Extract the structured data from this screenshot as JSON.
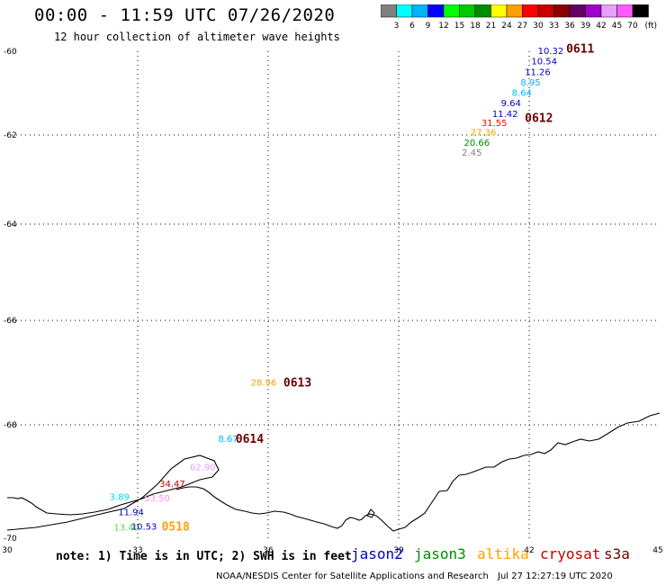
{
  "header": {
    "title": "00:00 - 11:59 UTC 07/26/2020",
    "subtitle": "12 hour collection of altimeter wave heights"
  },
  "legend": {
    "unit": "(ft)",
    "colors": [
      "#808080",
      "#00ffff",
      "#00b4ff",
      "#0000ff",
      "#00ff00",
      "#00c800",
      "#008c00",
      "#ffff00",
      "#ffa000",
      "#ff0000",
      "#c80000",
      "#8c0000",
      "#640064",
      "#a000c8",
      "#e6a0ff",
      "#ff5aff",
      "#000000"
    ],
    "labels": [
      "3",
      "6",
      "9",
      "12",
      "15",
      "18",
      "21",
      "24",
      "27",
      "30",
      "33",
      "36",
      "39",
      "42",
      "45",
      "70"
    ]
  },
  "axes": {
    "x_ticks": [
      "30",
      "33",
      "36",
      "39",
      "42",
      "45"
    ],
    "y_ticks": [
      "-60",
      "-62",
      "-64",
      "-66",
      "-68",
      "-70"
    ]
  },
  "observations": [
    {
      "label": "10.32",
      "lon": 42.2,
      "lat": -60.0,
      "color": "#0000c8"
    },
    {
      "label": "10.54",
      "lon": 42.05,
      "lat": -60.25,
      "color": "#0000c8"
    },
    {
      "label": "11.26",
      "lon": 41.9,
      "lat": -60.5,
      "color": "#0000c8"
    },
    {
      "label": "8.95",
      "lon": 41.8,
      "lat": -60.75,
      "color": "#00b4ff"
    },
    {
      "label": "8.64",
      "lon": 41.6,
      "lat": -61.0,
      "color": "#00b4ff"
    },
    {
      "label": "9.64",
      "lon": 41.35,
      "lat": -61.25,
      "color": "#0000c8"
    },
    {
      "label": "11.42",
      "lon": 41.15,
      "lat": -61.5,
      "color": "#0000c8"
    },
    {
      "label": "31.55",
      "lon": 40.9,
      "lat": -61.72,
      "color": "#ff0000"
    },
    {
      "label": "27.36",
      "lon": 40.65,
      "lat": -61.95,
      "color": "#ffa000"
    },
    {
      "label": "20.66",
      "lon": 40.5,
      "lat": -62.18,
      "color": "#008c00"
    },
    {
      "label": "2.45",
      "lon": 40.45,
      "lat": -62.4,
      "color": "#808080"
    },
    {
      "label": "28.96",
      "lon": 35.6,
      "lat": -67.2,
      "color": "#ffa000"
    },
    {
      "label": "8.67",
      "lon": 34.85,
      "lat": -68.25,
      "color": "#00b4ff"
    },
    {
      "label": "62.90",
      "lon": 34.2,
      "lat": -68.75,
      "color": "#e6a0ff"
    },
    {
      "label": "34.47",
      "lon": 33.5,
      "lat": -69.05,
      "color": "#c80000"
    },
    {
      "label": "3.89",
      "lon": 32.35,
      "lat": -69.28,
      "color": "#00dcdc"
    },
    {
      "label": "53.50",
      "lon": 33.15,
      "lat": -69.3,
      "color": "#ff8cff"
    },
    {
      "label": "11.94",
      "lon": 32.55,
      "lat": -69.55,
      "color": "#0000c8"
    },
    {
      "label": "13.40",
      "lon": 32.45,
      "lat": -69.82,
      "color": "#50dc50"
    },
    {
      "label": "10.53",
      "lon": 32.85,
      "lat": -69.8,
      "color": "#0000c8"
    }
  ],
  "passes": [
    {
      "label": "0611",
      "lon": 42.85,
      "lat": -59.95
    },
    {
      "label": "0612",
      "lon": 41.9,
      "lat": -61.6
    },
    {
      "label": "0613",
      "lon": 36.35,
      "lat": -67.2
    },
    {
      "label": "0614",
      "lon": 35.25,
      "lat": -68.25
    },
    {
      "label": "0518",
      "lon": 33.55,
      "lat": -69.8
    }
  ],
  "footer": {
    "note": "note: 1) Time is in UTC; 2) SWH is in feet",
    "satellites": [
      {
        "name": "jason2",
        "color": "#0000c8"
      },
      {
        "name": "jason3",
        "color": "#008c00"
      },
      {
        "name": "altika",
        "color": "#ffa000"
      },
      {
        "name": "cryosat",
        "color": "#c80000"
      },
      {
        "name": "s3a",
        "color": "#6b0000"
      }
    ],
    "credit": "NOAA/NESDIS Center for Satellite Applications and Research",
    "timestamp": "Jul 27 12:27:19 UTC 2020"
  }
}
